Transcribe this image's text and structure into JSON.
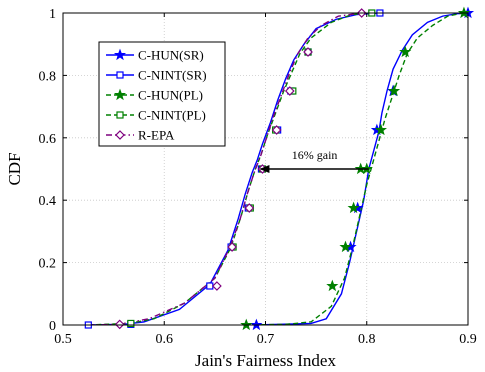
{
  "chart_data": {
    "type": "line",
    "xlabel": "Jain's Fairness Index",
    "ylabel": "CDF",
    "xlim": [
      0.5,
      0.9
    ],
    "ylim": [
      0,
      1
    ],
    "x_ticks": [
      "0.5",
      "0.6",
      "0.7",
      "0.8",
      "0.9"
    ],
    "y_ticks": [
      "0",
      "0.2",
      "0.4",
      "0.6",
      "0.8",
      "1"
    ],
    "grid": true,
    "legend_position": "top-left",
    "annotation": {
      "text": "16% gain",
      "arrow_from": {
        "x": 0.802,
        "y": 0.5
      },
      "arrow_to": {
        "x": 0.695,
        "y": 0.5
      }
    },
    "series": [
      {
        "name": "C-HUN(SR)",
        "color": "#0000ff",
        "dash": "solid",
        "marker": "star-filled",
        "x": [
          0.69,
          0.745,
          0.76,
          0.775,
          0.783,
          0.79,
          0.797,
          0.802,
          0.807,
          0.812,
          0.815,
          0.82,
          0.826,
          0.835,
          0.845,
          0.86,
          0.875,
          0.89,
          0.898
        ],
        "y": [
          0.0,
          0.005,
          0.02,
          0.1,
          0.2,
          0.3,
          0.4,
          0.5,
          0.56,
          0.62,
          0.68,
          0.75,
          0.82,
          0.88,
          0.93,
          0.97,
          0.99,
          0.998,
          1.0
        ],
        "markers_x": [
          0.691,
          0.784,
          0.791,
          0.81,
          0.826,
          0.9
        ],
        "markers_y": [
          0.0,
          0.25,
          0.375,
          0.625,
          0.75,
          1.0
        ]
      },
      {
        "name": "C-NINT(SR)",
        "color": "#0000ff",
        "dash": "solid",
        "marker": "square-open",
        "x": [
          0.525,
          0.56,
          0.58,
          0.615,
          0.645,
          0.663,
          0.673,
          0.68,
          0.687,
          0.692,
          0.697,
          0.705,
          0.712,
          0.72,
          0.728,
          0.738,
          0.75,
          0.77,
          0.79,
          0.812
        ],
        "y": [
          0.0,
          0.002,
          0.01,
          0.05,
          0.13,
          0.24,
          0.34,
          0.42,
          0.49,
          0.53,
          0.58,
          0.65,
          0.72,
          0.79,
          0.85,
          0.9,
          0.95,
          0.98,
          0.995,
          1.0
        ],
        "markers_x": [
          0.525,
          0.567,
          0.645,
          0.666,
          0.683,
          0.696,
          0.712,
          0.725,
          0.742,
          0.813
        ],
        "markers_y": [
          0.0,
          0.002,
          0.125,
          0.25,
          0.375,
          0.5,
          0.625,
          0.75,
          0.875,
          1.0
        ]
      },
      {
        "name": "C-HUN(PL)",
        "color": "#008000",
        "dash": "dash",
        "marker": "star-filled",
        "x": [
          0.68,
          0.72,
          0.745,
          0.765,
          0.778,
          0.786,
          0.793,
          0.8,
          0.806,
          0.812,
          0.818,
          0.825,
          0.832,
          0.84,
          0.85,
          0.865,
          0.88,
          0.895
        ],
        "y": [
          0.0,
          0.002,
          0.01,
          0.06,
          0.15,
          0.25,
          0.35,
          0.45,
          0.52,
          0.59,
          0.66,
          0.73,
          0.8,
          0.87,
          0.92,
          0.96,
          0.99,
          1.0
        ],
        "markers_x": [
          0.681,
          0.766,
          0.779,
          0.787,
          0.794,
          0.8,
          0.814,
          0.827,
          0.838,
          0.896
        ],
        "markers_y": [
          0.0,
          0.125,
          0.25,
          0.375,
          0.5,
          0.5,
          0.625,
          0.75,
          0.875,
          1.0
        ]
      },
      {
        "name": "C-NINT(PL)",
        "color": "#008000",
        "dash": "dash",
        "marker": "square-open",
        "x": [
          0.525,
          0.565,
          0.59,
          0.62,
          0.65,
          0.666,
          0.676,
          0.683,
          0.69,
          0.696,
          0.702,
          0.71,
          0.718,
          0.726,
          0.734,
          0.745,
          0.765,
          0.785,
          0.803
        ],
        "y": [
          0.0,
          0.005,
          0.02,
          0.07,
          0.15,
          0.25,
          0.35,
          0.43,
          0.5,
          0.55,
          0.61,
          0.68,
          0.75,
          0.81,
          0.87,
          0.92,
          0.97,
          0.995,
          1.0
        ],
        "markers_x": [
          0.567,
          0.668,
          0.685,
          0.697,
          0.71,
          0.727,
          0.742,
          0.805
        ],
        "markers_y": [
          0.005,
          0.25,
          0.375,
          0.5,
          0.625,
          0.75,
          0.875,
          1.0
        ]
      },
      {
        "name": "R-EPA",
        "color": "#7f007f",
        "dash": "dashdot",
        "marker": "diamond-open",
        "x": [
          0.525,
          0.555,
          0.585,
          0.62,
          0.65,
          0.665,
          0.675,
          0.682,
          0.689,
          0.695,
          0.701,
          0.708,
          0.716,
          0.724,
          0.732,
          0.742,
          0.755,
          0.772,
          0.795
        ],
        "y": [
          0.0,
          0.002,
          0.02,
          0.07,
          0.15,
          0.25,
          0.34,
          0.42,
          0.49,
          0.54,
          0.6,
          0.67,
          0.74,
          0.81,
          0.87,
          0.92,
          0.96,
          0.99,
          1.0
        ],
        "markers_x": [
          0.556,
          0.652,
          0.667,
          0.684,
          0.697,
          0.711,
          0.724,
          0.742,
          0.795
        ],
        "markers_y": [
          0.002,
          0.125,
          0.25,
          0.375,
          0.5,
          0.625,
          0.75,
          0.875,
          1.0
        ]
      }
    ]
  }
}
